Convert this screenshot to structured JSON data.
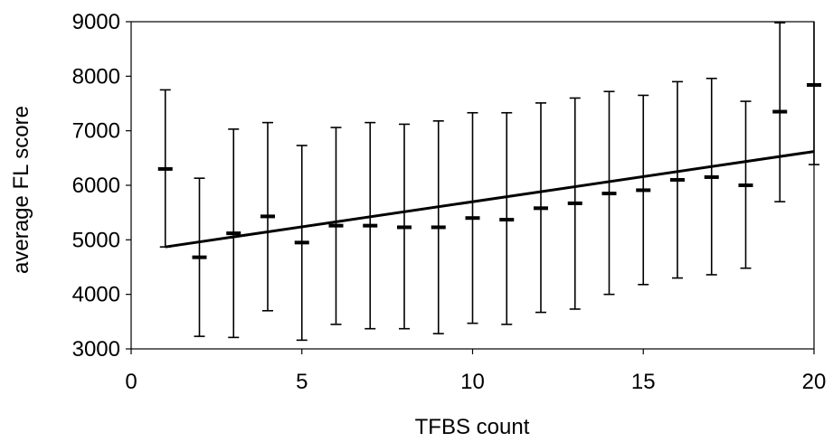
{
  "chart_data": {
    "type": "scatter",
    "title": "",
    "xlabel": "TFBS count",
    "ylabel": "average FL score",
    "xlim": [
      0,
      20
    ],
    "ylim": [
      3000,
      9000
    ],
    "xticks": [
      0,
      5,
      10,
      15,
      20
    ],
    "yticks": [
      3000,
      4000,
      5000,
      6000,
      7000,
      8000,
      9000
    ],
    "grid": false,
    "legend": "none",
    "points": [
      {
        "x": 1,
        "y": 6300,
        "low": 4870,
        "high": 7750
      },
      {
        "x": 2,
        "y": 4680,
        "low": 3230,
        "high": 6130
      },
      {
        "x": 3,
        "y": 5120,
        "low": 3210,
        "high": 7030
      },
      {
        "x": 4,
        "y": 5430,
        "low": 3700,
        "high": 7150
      },
      {
        "x": 5,
        "y": 4950,
        "low": 3160,
        "high": 6730
      },
      {
        "x": 6,
        "y": 5260,
        "low": 3450,
        "high": 7060
      },
      {
        "x": 7,
        "y": 5260,
        "low": 3370,
        "high": 7150
      },
      {
        "x": 8,
        "y": 5230,
        "low": 3370,
        "high": 7120
      },
      {
        "x": 9,
        "y": 5230,
        "low": 3280,
        "high": 7180
      },
      {
        "x": 10,
        "y": 5400,
        "low": 3470,
        "high": 7330
      },
      {
        "x": 11,
        "y": 5370,
        "low": 3450,
        "high": 7330
      },
      {
        "x": 12,
        "y": 5580,
        "low": 3670,
        "high": 7510
      },
      {
        "x": 13,
        "y": 5670,
        "low": 3730,
        "high": 7600
      },
      {
        "x": 14,
        "y": 5850,
        "low": 4000,
        "high": 7720
      },
      {
        "x": 15,
        "y": 5910,
        "low": 4180,
        "high": 7650
      },
      {
        "x": 16,
        "y": 6100,
        "low": 4300,
        "high": 7900
      },
      {
        "x": 17,
        "y": 6150,
        "low": 4360,
        "high": 7960
      },
      {
        "x": 18,
        "y": 6000,
        "low": 4480,
        "high": 7540
      },
      {
        "x": 19,
        "y": 7350,
        "low": 5700,
        "high": 8980
      },
      {
        "x": 20,
        "y": 7840,
        "low": 6380,
        "high": 9300
      }
    ],
    "trendline": {
      "x": [
        1,
        20
      ],
      "y": [
        4870,
        6620
      ]
    },
    "colors": {
      "marks": "#000000",
      "background": "#ffffff"
    }
  }
}
